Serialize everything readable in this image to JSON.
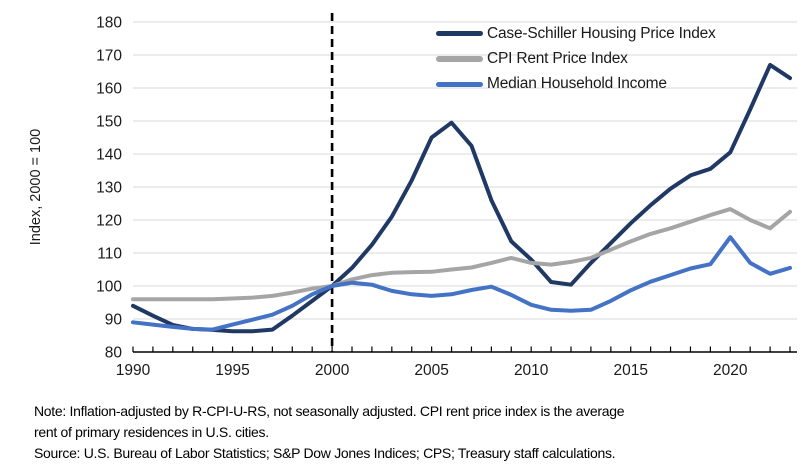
{
  "chart_data": {
    "type": "line",
    "title": "",
    "xlabel": "",
    "ylabel": "Index, 2000 = 100",
    "ylim": [
      80,
      180
    ],
    "y_ticks": [
      80,
      90,
      100,
      110,
      120,
      130,
      140,
      150,
      160,
      170,
      180
    ],
    "x_tick_labels": [
      1990,
      1995,
      2000,
      2005,
      2010,
      2015,
      2020
    ],
    "x": [
      1990,
      1991,
      1992,
      1993,
      1994,
      1995,
      1996,
      1997,
      1998,
      1999,
      2000,
      2001,
      2002,
      2003,
      2004,
      2005,
      2006,
      2007,
      2008,
      2009,
      2010,
      2011,
      2012,
      2013,
      2014,
      2015,
      2016,
      2017,
      2018,
      2019,
      2020,
      2021,
      2022,
      2023
    ],
    "series": [
      {
        "name": "Case-Schiller Housing Price Index",
        "color": "#1F3864",
        "values": [
          94,
          91,
          88.2,
          87,
          86.7,
          86.3,
          86.3,
          86.8,
          91,
          95.5,
          100,
          105.5,
          112.5,
          121,
          132,
          145,
          149.5,
          142.5,
          126,
          113.5,
          108,
          101.2,
          100.4,
          107,
          113,
          119,
          124.5,
          129.5,
          133.5,
          135.5,
          140.5,
          153.5,
          167,
          163
        ]
      },
      {
        "name": "CPI Rent Price Index",
        "color": "#A5A5A5",
        "values": [
          96,
          96,
          96,
          96,
          96,
          96.2,
          96.5,
          97,
          98,
          99.2,
          100,
          102,
          103.3,
          104,
          104.2,
          104.3,
          105,
          105.6,
          107,
          108.5,
          107,
          106.5,
          107.3,
          108.5,
          111,
          113.5,
          115.8,
          117.5,
          119.5,
          121.5,
          123.3,
          120,
          117.5,
          122.5
        ]
      },
      {
        "name": "Median Household Income",
        "color": "#4472C4",
        "values": [
          89,
          88.3,
          87.6,
          87,
          86.8,
          88.3,
          89.8,
          91.3,
          94,
          97.5,
          100,
          101,
          100.4,
          98.5,
          97.5,
          97,
          97.5,
          98.8,
          99.8,
          97.3,
          94.3,
          92.8,
          92.5,
          92.8,
          95.5,
          98.7,
          101.3,
          103.3,
          105.3,
          106.6,
          114.8,
          107,
          103.7,
          105.5
        ]
      }
    ],
    "reference_line_x": 2000,
    "grid": "horizontal",
    "legend_position": "top-right-inside"
  },
  "notes": [
    "Note: Inflation-adjusted by R-CPI-U-RS, not seasonally adjusted. CPI rent price index is the average",
    "rent of primary residences in U.S. cities.",
    "Source: U.S. Bureau of Labor Statistics; S&P Dow Jones Indices; CPS; Treasury staff calculations."
  ],
  "colors": {
    "grid": "#D9D9D9",
    "axis": "#000000",
    "reference_line": "#000000",
    "text": "#1a1a1a"
  }
}
